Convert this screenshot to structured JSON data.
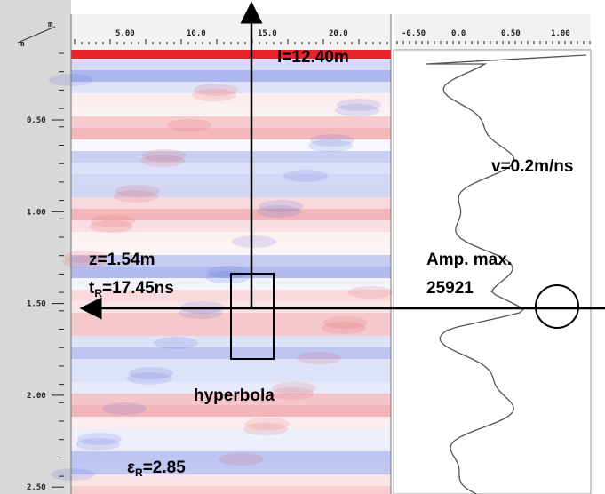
{
  "depth_axis": {
    "unit_top": "m",
    "unit_bottom": "m",
    "ticks": [
      "0.50",
      "1.00",
      "1.50",
      "2.00",
      "2.50"
    ]
  },
  "distance_axis": {
    "ticks": [
      "5.00",
      "10.0",
      "15.0",
      "20.0"
    ]
  },
  "amplitude_axis": {
    "ticks": [
      "-0.50",
      "0.0",
      "0.50",
      "1.00"
    ]
  },
  "annotations": {
    "length": "l=12.40m",
    "velocity": "v=0.2m/ns",
    "depth": "z=1.54m",
    "time_prefix": "t",
    "time_sub": "R",
    "time_value": "=17.45ns",
    "amp_label": "Amp. max.",
    "amp_value": "25921",
    "hyperbola": "hyperbola",
    "eps_prefix": "ε",
    "eps_sub": "R",
    "eps_value": "=2.85"
  }
}
